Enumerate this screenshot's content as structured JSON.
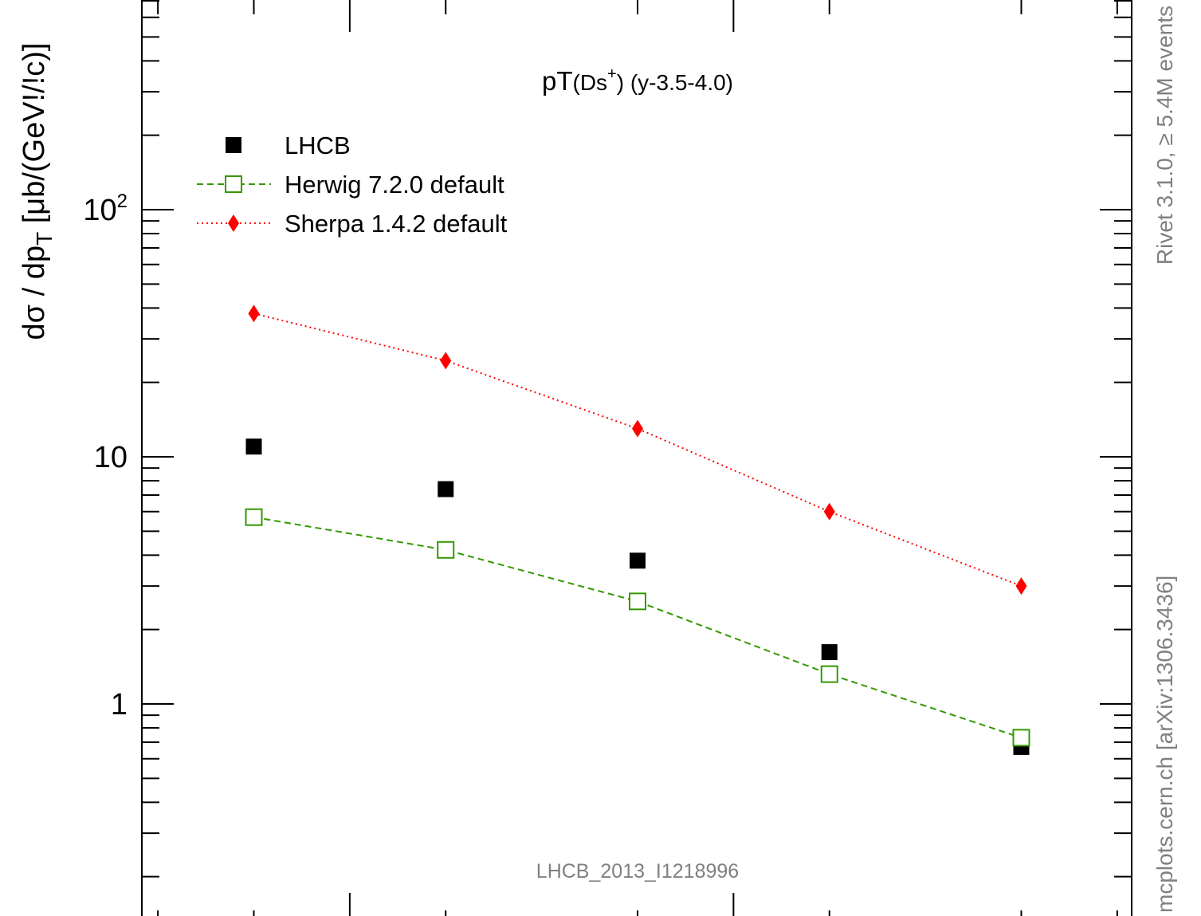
{
  "chart_data": {
    "type": "scatter",
    "title": "pT(Ds⁺) (y-3.5-4.0)",
    "ylabel": "dσ / dp_T [μb/(GeV!/!c)]",
    "yscale": "log",
    "ylim": [
      0.2,
      700
    ],
    "ytick_labels": [
      {
        "value": 1,
        "label": "1"
      },
      {
        "value": 10,
        "label": "10"
      },
      {
        "value": 100,
        "label": "10",
        "sup": "2"
      }
    ],
    "x": [
      1,
      2,
      3,
      4,
      5
    ],
    "xlim": [
      0.4,
      5.6
    ],
    "legend_position": "top-left",
    "series": [
      {
        "name": "LHCB",
        "marker": "filled-square",
        "color": "#000000",
        "values": [
          11.0,
          7.4,
          3.8,
          1.62,
          0.67
        ]
      },
      {
        "name": "Herwig 7.2.0 default",
        "marker": "open-square",
        "line": "dashed",
        "color": "#339900",
        "values": [
          5.7,
          4.2,
          2.6,
          1.32,
          0.73
        ]
      },
      {
        "name": "Sherpa 1.4.2 default",
        "marker": "diamond",
        "line": "dotted",
        "color": "#ff0000",
        "values": [
          38.0,
          24.5,
          13.0,
          6.0,
          3.0
        ]
      }
    ],
    "watermark": "LHCB_2013_I1218996",
    "side_label_top": "Rivet 3.1.0, ≥ 5.4M events",
    "side_label_bottom": "mcplots.cern.ch [arXiv:1306.3436]"
  },
  "colors": {
    "frame": "#000000",
    "side_text": "#808080",
    "watermark": "#808080"
  }
}
